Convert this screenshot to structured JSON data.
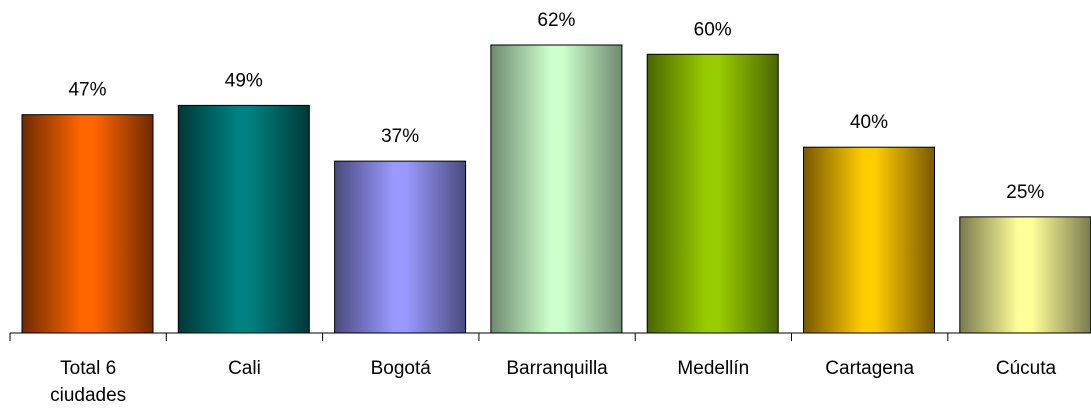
{
  "chart_data": {
    "type": "bar",
    "title": "",
    "xlabel": "",
    "ylabel": "",
    "ylim": [
      0,
      62
    ],
    "grid": false,
    "legend": "none",
    "categories": [
      "Total 6 ciudades",
      "Cali",
      "Bogotá",
      "Barranquilla",
      "Medellín",
      "Cartagena",
      "Cúcuta"
    ],
    "values": [
      47,
      49,
      37,
      62,
      60,
      40,
      25
    ],
    "value_labels": [
      "47%",
      "49%",
      "37%",
      "62%",
      "60%",
      "40%",
      "25%"
    ],
    "bar_colors": [
      {
        "edge": "#6e2a00",
        "center": "#ff6600"
      },
      {
        "edge": "#003838",
        "center": "#008080"
      },
      {
        "edge": "#4a4a7e",
        "center": "#9999ff"
      },
      {
        "edge": "#6f8a6f",
        "center": "#ccffcc"
      },
      {
        "edge": "#4a6600",
        "center": "#99cc00"
      },
      {
        "edge": "#7a5800",
        "center": "#ffcc00"
      },
      {
        "edge": "#7a7a4e",
        "center": "#ffff99"
      }
    ]
  }
}
